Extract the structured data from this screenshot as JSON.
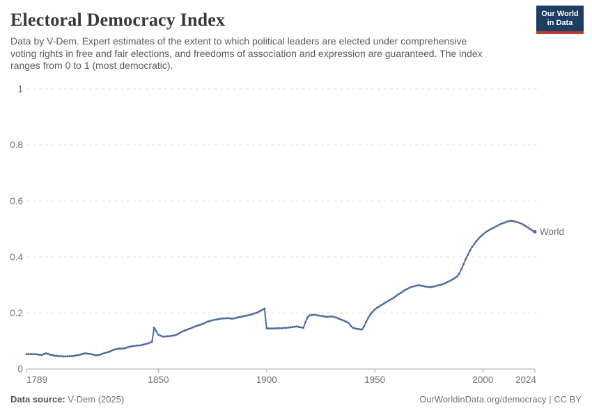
{
  "header": {
    "title": "Electoral Democracy Index",
    "subtitle_full": "Data by V-Dem. Expert estimates of the extent to which political leaders are elected under comprehensive voting rights in free and fair elections, and freedoms of association and expression are guaranteed. The index ranges from 0 to 1 (most democratic).",
    "subtitle_lines": [
      "Data by V-Dem. Expert estimates of the extent to which political leaders are elected under comprehensive",
      "voting rights in free and fair elections, and freedoms of association and expression are guaranteed. The index",
      "ranges from 0 to 1 (most democratic)."
    ],
    "logo": {
      "line1": "Our World",
      "line2": "in Data",
      "bg_color": "#1d3d63",
      "accent_color": "#c23a34"
    }
  },
  "chart_data": {
    "type": "line",
    "title": "Electoral Democracy Index",
    "xlabel": "",
    "ylabel": "",
    "x_axis": {
      "range": [
        1789,
        2024
      ],
      "tick_labels": [
        "1789",
        "1850",
        "1900",
        "1950",
        "2000",
        "2024"
      ]
    },
    "y_axis": {
      "range": [
        0,
        1
      ],
      "tick_labels": [
        "0",
        "0.2",
        "0.4",
        "0.6",
        "0.8",
        "1"
      ],
      "gridlines": "dashed"
    },
    "legend": "end-of-line label",
    "series": [
      {
        "name": "World",
        "color": "#4C6A9C",
        "start_year": 1789,
        "end_year": 2024,
        "interval_years": 1,
        "values": [
          0.053,
          0.053,
          0.053,
          0.053,
          0.053,
          0.052,
          0.051,
          0.05,
          0.053,
          0.056,
          0.054,
          0.051,
          0.05,
          0.048,
          0.047,
          0.046,
          0.046,
          0.045,
          0.045,
          0.045,
          0.046,
          0.046,
          0.047,
          0.049,
          0.05,
          0.052,
          0.054,
          0.056,
          0.055,
          0.054,
          0.053,
          0.051,
          0.049,
          0.05,
          0.051,
          0.054,
          0.057,
          0.059,
          0.061,
          0.064,
          0.068,
          0.07,
          0.072,
          0.073,
          0.073,
          0.074,
          0.076,
          0.079,
          0.08,
          0.082,
          0.083,
          0.084,
          0.084,
          0.085,
          0.087,
          0.089,
          0.091,
          0.094,
          0.097,
          0.148,
          0.135,
          0.122,
          0.119,
          0.116,
          0.116,
          0.117,
          0.117,
          0.118,
          0.12,
          0.121,
          0.125,
          0.13,
          0.134,
          0.137,
          0.14,
          0.143,
          0.146,
          0.149,
          0.152,
          0.155,
          0.157,
          0.16,
          0.163,
          0.167,
          0.17,
          0.172,
          0.174,
          0.176,
          0.177,
          0.179,
          0.18,
          0.181,
          0.181,
          0.182,
          0.181,
          0.18,
          0.181,
          0.183,
          0.185,
          0.186,
          0.188,
          0.19,
          0.191,
          0.193,
          0.195,
          0.198,
          0.2,
          0.203,
          0.207,
          0.211,
          0.216,
          0.146,
          0.145,
          0.145,
          0.145,
          0.145,
          0.146,
          0.146,
          0.146,
          0.147,
          0.147,
          0.148,
          0.149,
          0.15,
          0.151,
          0.152,
          0.15,
          0.149,
          0.147,
          0.168,
          0.185,
          0.192,
          0.193,
          0.194,
          0.192,
          0.191,
          0.19,
          0.189,
          0.187,
          0.186,
          0.187,
          0.188,
          0.186,
          0.184,
          0.181,
          0.178,
          0.175,
          0.172,
          0.168,
          0.164,
          0.153,
          0.147,
          0.145,
          0.143,
          0.142,
          0.141,
          0.152,
          0.168,
          0.183,
          0.196,
          0.205,
          0.213,
          0.218,
          0.223,
          0.228,
          0.233,
          0.238,
          0.242,
          0.247,
          0.251,
          0.256,
          0.262,
          0.267,
          0.272,
          0.277,
          0.282,
          0.286,
          0.29,
          0.293,
          0.295,
          0.297,
          0.299,
          0.298,
          0.297,
          0.295,
          0.294,
          0.293,
          0.293,
          0.294,
          0.296,
          0.298,
          0.3,
          0.302,
          0.305,
          0.308,
          0.312,
          0.316,
          0.32,
          0.325,
          0.33,
          0.34,
          0.356,
          0.374,
          0.392,
          0.408,
          0.423,
          0.436,
          0.447,
          0.457,
          0.466,
          0.474,
          0.481,
          0.487,
          0.492,
          0.497,
          0.501,
          0.505,
          0.509,
          0.513,
          0.517,
          0.52,
          0.523,
          0.526,
          0.528,
          0.529,
          0.528,
          0.526,
          0.524,
          0.521,
          0.518,
          0.514,
          0.509,
          0.504,
          0.499,
          0.494,
          0.49
        ]
      }
    ]
  },
  "footer": {
    "source_label": "Data source:",
    "source_value": " V-Dem (2025)",
    "credit": "OurWorldinData.org/democracy | CC BY"
  }
}
